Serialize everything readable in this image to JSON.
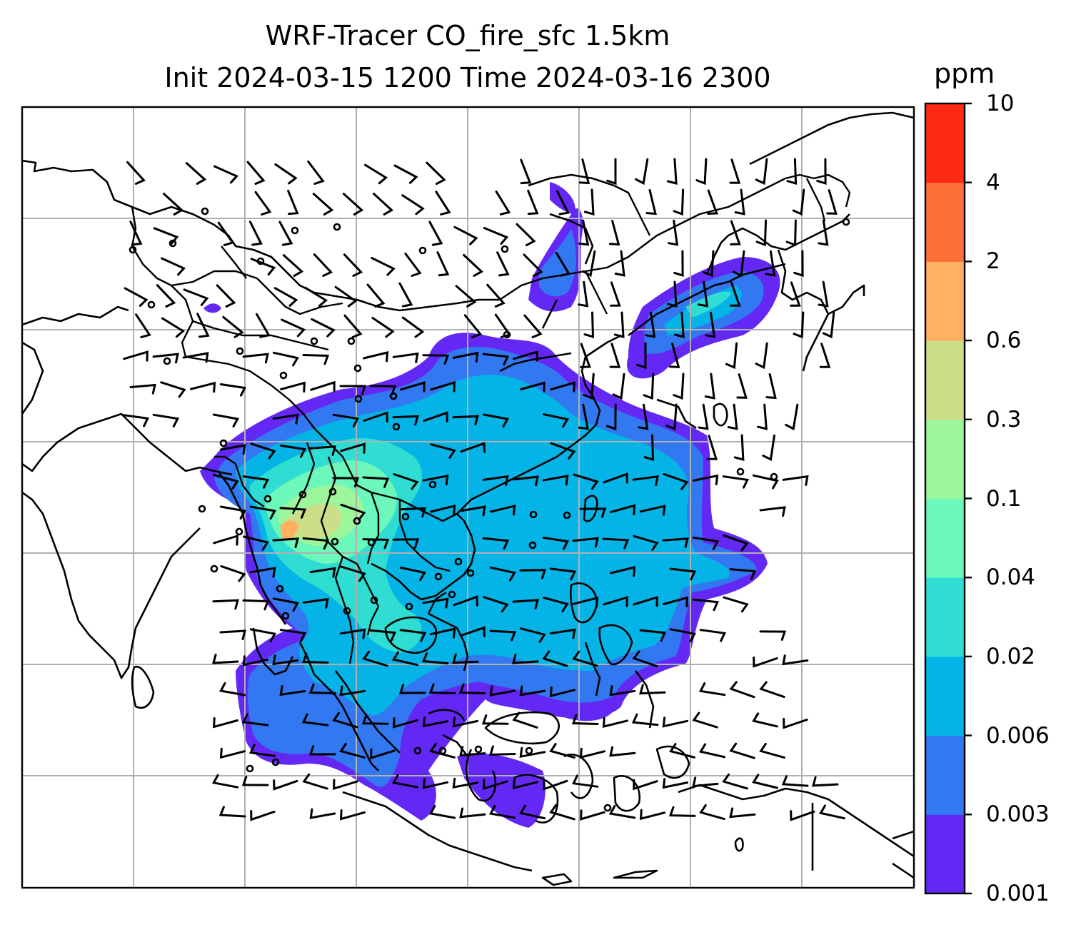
{
  "title": {
    "line1": "WRF-Tracer CO_fire_sfc 1.5km",
    "line2": "Init 2024-03-15 1200 Time 2024-03-16 2300"
  },
  "colorbar": {
    "unit": "ppm",
    "levels": [
      "0.001",
      "0.003",
      "0.006",
      "0.02",
      "0.04",
      "0.1",
      "0.3",
      "0.6",
      "2",
      "4",
      "10"
    ],
    "colors": [
      "#6428f5",
      "#3278f0",
      "#05b4e6",
      "#2fddd2",
      "#6cf7bb",
      "#9cf79a",
      "#cdde88",
      "#ffb060",
      "#ff7038",
      "#ff2a14"
    ]
  },
  "map": {
    "gridlines": true,
    "field_colors": {
      "c1": "#6428f5",
      "c2": "#3278f0",
      "c3": "#05b4e6",
      "c4": "#2fddd2",
      "c5": "#6cf7bb",
      "c6": "#9cf79a",
      "c7": "#cdde88",
      "c8": "#ffb060"
    },
    "overlays": [
      "coastlines",
      "country-borders",
      "wind-barbs"
    ]
  }
}
